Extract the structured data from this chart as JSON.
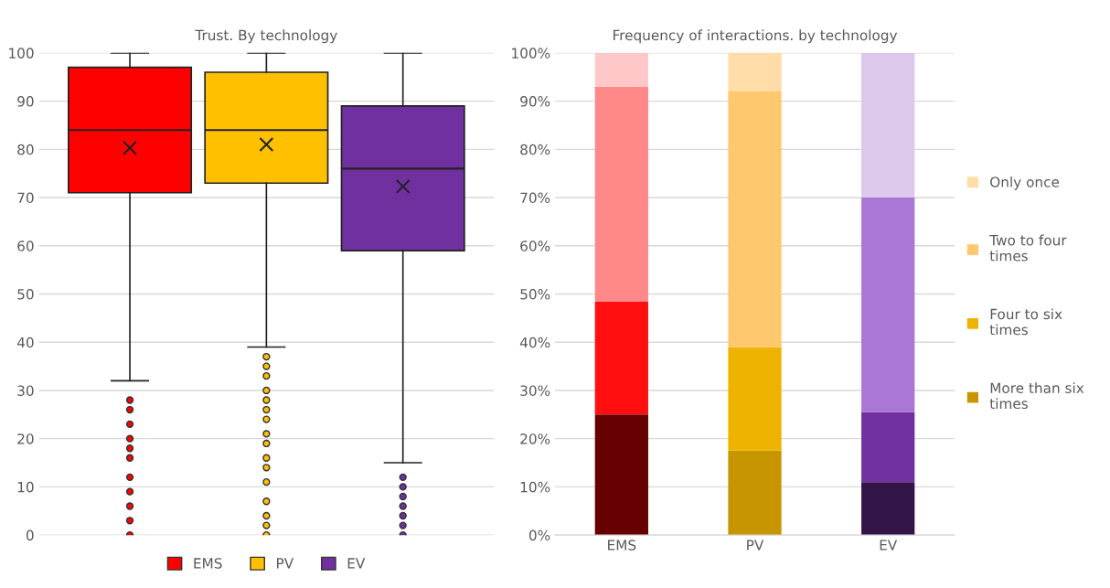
{
  "chart_data": [
    {
      "type": "box",
      "title": "Trust. By technology",
      "categories": [
        null
      ],
      "ylim": [
        0,
        100
      ],
      "yticks": [
        0,
        10,
        20,
        30,
        40,
        50,
        60,
        70,
        80,
        90,
        100
      ],
      "grid": "y",
      "legend": "bottom",
      "marker": "circle",
      "series": [
        {
          "name": "EMS",
          "color": "#ff0000",
          "boxes": [
            {
              "low": 32,
              "q1": 71,
              "median": 84,
              "q3": 97,
              "high": 100,
              "mean": 80.3,
              "outliers": [
                28,
                26,
                23,
                20,
                18,
                16,
                12,
                9,
                6,
                3,
                0
              ]
            }
          ]
        },
        {
          "name": "PV",
          "color": "#ffc000",
          "boxes": [
            {
              "low": 39,
              "q1": 73,
              "median": 84,
              "q3": 96,
              "high": 100,
              "mean": 81,
              "outliers": [
                37,
                35,
                33,
                30,
                28,
                26,
                24,
                21,
                19,
                16,
                14,
                11,
                7,
                4,
                2,
                0
              ]
            }
          ]
        },
        {
          "name": "EV",
          "color": "#7030a0",
          "boxes": [
            {
              "low": 15,
              "q1": 59,
              "median": 76,
              "q3": 89,
              "high": 100,
              "mean": 72.3,
              "outliers": [
                12,
                10,
                8,
                6,
                4,
                2,
                0
              ]
            }
          ]
        }
      ]
    },
    {
      "type": "bar",
      "stacked": true,
      "title": "Frequency of interactions. by technology",
      "categories": [
        "EMS",
        "PV",
        "EV"
      ],
      "ylim": [
        0,
        100
      ],
      "grid": "y",
      "legend": "right",
      "yticks": [
        {
          "value": 0,
          "label": "0%"
        },
        {
          "value": 10,
          "label": "10%"
        },
        {
          "value": 20,
          "label": "20%"
        },
        {
          "value": 30,
          "label": "30%"
        },
        {
          "value": 40,
          "label": "40%"
        },
        {
          "value": 50,
          "label": "50%"
        },
        {
          "value": 60,
          "label": "60%"
        },
        {
          "value": 70,
          "label": "70%"
        },
        {
          "value": 80,
          "label": "80%"
        },
        {
          "value": 90,
          "label": "90%"
        },
        {
          "value": 100,
          "label": "100%"
        }
      ],
      "series": [
        {
          "name": "More than six times",
          "color": "#c69500",
          "colors": [
            "#660000",
            "#c69500",
            "#321446"
          ],
          "values": [
            25,
            17.5,
            11
          ]
        },
        {
          "name": "Four to six times",
          "color": "#eeb300",
          "colors": [
            "#ff0f0f",
            "#eeb300",
            "#7030a0"
          ],
          "values": [
            23.5,
            21.5,
            14.5
          ]
        },
        {
          "name": "Two to four times",
          "color": "#ffc86e",
          "colors": [
            "#ff8888",
            "#ffc86e",
            "#aa77d4"
          ],
          "values": [
            44.5,
            53,
            44.5
          ]
        },
        {
          "name": "Only once",
          "color": "#ffdca8",
          "colors": [
            "#ffc8c8",
            "#ffdca8",
            "#dcc8ea"
          ],
          "values": [
            7,
            8,
            30
          ]
        }
      ]
    }
  ]
}
